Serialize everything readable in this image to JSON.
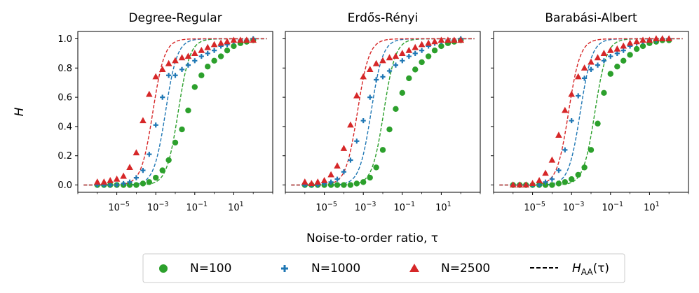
{
  "figure": {
    "ylabel": "H",
    "xlabel": "Noise-to-order ratio, τ",
    "colors": {
      "N=100": "#2ca02c",
      "N=1000": "#1f77b4",
      "N=2500": "#d62728"
    },
    "legend": {
      "placement": "bottom-center",
      "entries": [
        {
          "label": "N=100",
          "marker": "circle",
          "color": "#2ca02c"
        },
        {
          "label": "N=1000",
          "marker": "plus",
          "color": "#1f77b4"
        },
        {
          "label": "N=2500",
          "marker": "triangle",
          "color": "#d62728"
        },
        {
          "label": "H",
          "sub": "AA",
          "suffix": "(τ)",
          "marker": "dashed-line",
          "color": "#000000"
        }
      ]
    }
  },
  "chart_data": [
    {
      "type": "scatter",
      "title": "Degree-Regular",
      "x_scale": "log",
      "xlim": [
        1e-07,
        1000.0
      ],
      "ylim": [
        -0.05,
        1.05
      ],
      "x_ticks": [
        {
          "value": 1e-05,
          "base": "10",
          "exp": "−5"
        },
        {
          "value": 0.001,
          "base": "10",
          "exp": "−3"
        },
        {
          "value": 0.1,
          "base": "10",
          "exp": "−1"
        },
        {
          "value": 10,
          "base": "10",
          "exp": "1"
        }
      ],
      "y_ticks": [
        {
          "value": 0,
          "label": "0.0"
        },
        {
          "value": 0.2,
          "label": "0.2"
        },
        {
          "value": 0.4,
          "label": "0.4"
        },
        {
          "value": 0.6,
          "label": "0.6"
        },
        {
          "value": 0.8,
          "label": "0.8"
        },
        {
          "value": 1.0,
          "label": "1.0"
        }
      ],
      "x": [
        1e-06,
        2.2e-06,
        4.6e-06,
        1e-05,
        2.2e-05,
        4.6e-05,
        0.0001,
        0.00022,
        0.00046,
        0.001,
        0.0022,
        0.0046,
        0.01,
        0.022,
        0.046,
        0.1,
        0.22,
        0.46,
        1,
        2.2,
        4.6,
        10,
        22,
        46,
        100
      ],
      "series": [
        {
          "name": "N=100",
          "marker": "circle",
          "values": [
            0,
            0,
            0,
            0,
            0,
            0,
            0,
            0.01,
            0.02,
            0.05,
            0.1,
            0.17,
            0.29,
            0.38,
            0.51,
            0.67,
            0.75,
            0.81,
            0.85,
            0.88,
            0.92,
            0.95,
            0.97,
            0.98,
            0.99
          ]
        },
        {
          "name": "N=1000",
          "marker": "plus",
          "values": [
            0,
            0,
            0,
            0,
            0.01,
            0.02,
            0.05,
            0.1,
            0.21,
            0.41,
            0.6,
            0.75,
            0.75,
            0.79,
            0.82,
            0.85,
            0.88,
            0.9,
            0.92,
            0.95,
            0.96,
            0.98,
            0.99,
            0.99,
            1.0
          ]
        },
        {
          "name": "N=2500",
          "marker": "triangle",
          "values": [
            0.02,
            0.02,
            0.03,
            0.04,
            0.06,
            0.12,
            0.22,
            0.44,
            0.62,
            0.74,
            0.79,
            0.83,
            0.85,
            0.87,
            0.88,
            0.9,
            0.92,
            0.94,
            0.96,
            0.97,
            0.98,
            0.99,
            0.99,
            0.99,
            0.99
          ]
        }
      ],
      "theory_center_log10": {
        "N=100": -1.85,
        "N=1000": -2.5,
        "N=2500": -3.15
      }
    },
    {
      "type": "scatter",
      "title": "Erdős-Rényi",
      "x_scale": "log",
      "xlim": [
        1e-07,
        1000.0
      ],
      "ylim": [
        -0.05,
        1.05
      ],
      "x_ticks": [
        {
          "value": 1e-05,
          "base": "10",
          "exp": "−5"
        },
        {
          "value": 0.001,
          "base": "10",
          "exp": "−3"
        },
        {
          "value": 0.1,
          "base": "10",
          "exp": "−1"
        },
        {
          "value": 10,
          "base": "10",
          "exp": "1"
        }
      ],
      "y_ticks": [
        {
          "value": 0,
          "label": ""
        },
        {
          "value": 0.2,
          "label": ""
        },
        {
          "value": 0.4,
          "label": ""
        },
        {
          "value": 0.6,
          "label": ""
        },
        {
          "value": 0.8,
          "label": ""
        },
        {
          "value": 1.0,
          "label": ""
        }
      ],
      "x": [
        1e-06,
        2.2e-06,
        4.6e-06,
        1e-05,
        2.2e-05,
        4.6e-05,
        0.0001,
        0.00022,
        0.00046,
        0.001,
        0.0022,
        0.0046,
        0.01,
        0.022,
        0.046,
        0.1,
        0.22,
        0.46,
        1,
        2.2,
        4.6,
        10,
        22,
        46,
        100
      ],
      "series": [
        {
          "name": "N=100",
          "marker": "circle",
          "values": [
            0,
            0,
            0,
            0,
            0,
            0,
            0,
            0,
            0.01,
            0.02,
            0.05,
            0.12,
            0.24,
            0.38,
            0.52,
            0.63,
            0.73,
            0.79,
            0.84,
            0.88,
            0.92,
            0.95,
            0.97,
            0.98,
            0.99
          ]
        },
        {
          "name": "N=1000",
          "marker": "plus",
          "values": [
            0,
            0,
            0,
            0.01,
            0.02,
            0.04,
            0.09,
            0.17,
            0.3,
            0.44,
            0.6,
            0.72,
            0.74,
            0.78,
            0.82,
            0.85,
            0.88,
            0.9,
            0.92,
            0.95,
            0.97,
            0.98,
            0.99,
            0.99,
            1.0
          ]
        },
        {
          "name": "N=2500",
          "marker": "triangle",
          "values": [
            0.02,
            0.01,
            0.02,
            0.03,
            0.07,
            0.13,
            0.25,
            0.41,
            0.61,
            0.74,
            0.79,
            0.83,
            0.85,
            0.87,
            0.88,
            0.9,
            0.92,
            0.94,
            0.96,
            0.97,
            0.98,
            0.99,
            0.99,
            0.99,
            0.99
          ]
        }
      ],
      "theory_center_log10": {
        "N=100": -1.95,
        "N=1000": -2.6,
        "N=2500": -3.3
      }
    },
    {
      "type": "scatter",
      "title": "Barabási-Albert",
      "x_scale": "log",
      "xlim": [
        1e-07,
        1000.0
      ],
      "ylim": [
        -0.05,
        1.05
      ],
      "x_ticks": [
        {
          "value": 1e-05,
          "base": "10",
          "exp": "−5"
        },
        {
          "value": 0.001,
          "base": "10",
          "exp": "−3"
        },
        {
          "value": 0.1,
          "base": "10",
          "exp": "−1"
        },
        {
          "value": 10,
          "base": "10",
          "exp": "1"
        }
      ],
      "y_ticks": [
        {
          "value": 0,
          "label": ""
        },
        {
          "value": 0.2,
          "label": ""
        },
        {
          "value": 0.4,
          "label": ""
        },
        {
          "value": 0.6,
          "label": ""
        },
        {
          "value": 0.8,
          "label": ""
        },
        {
          "value": 1.0,
          "label": ""
        }
      ],
      "x": [
        1e-06,
        2.2e-06,
        4.6e-06,
        1e-05,
        2.2e-05,
        4.6e-05,
        0.0001,
        0.00022,
        0.00046,
        0.001,
        0.0022,
        0.0046,
        0.01,
        0.022,
        0.046,
        0.1,
        0.22,
        0.46,
        1,
        2.2,
        4.6,
        10,
        22,
        46,
        100
      ],
      "series": [
        {
          "name": "N=100",
          "marker": "circle",
          "values": [
            0,
            0,
            0,
            0,
            0,
            0,
            0,
            0.01,
            0.02,
            0.04,
            0.07,
            0.12,
            0.24,
            0.42,
            0.63,
            0.76,
            0.81,
            0.85,
            0.89,
            0.93,
            0.95,
            0.97,
            0.98,
            0.99,
            0.99
          ]
        },
        {
          "name": "N=1000",
          "marker": "plus",
          "values": [
            0,
            0,
            0,
            0,
            0,
            0.02,
            0.04,
            0.1,
            0.24,
            0.44,
            0.61,
            0.73,
            0.79,
            0.82,
            0.85,
            0.88,
            0.9,
            0.92,
            0.95,
            0.97,
            0.98,
            0.99,
            0.99,
            1.0,
            1.0
          ]
        },
        {
          "name": "N=2500",
          "marker": "triangle",
          "values": [
            0,
            0,
            0,
            0.01,
            0.03,
            0.08,
            0.17,
            0.34,
            0.51,
            0.62,
            0.74,
            0.8,
            0.84,
            0.87,
            0.9,
            0.92,
            0.93,
            0.95,
            0.97,
            0.98,
            0.99,
            0.99,
            1.0,
            1.0,
            1.0
          ]
        }
      ],
      "theory_center_log10": {
        "N=100": -1.8,
        "N=1000": -2.55,
        "N=2500": -3.15
      }
    }
  ]
}
